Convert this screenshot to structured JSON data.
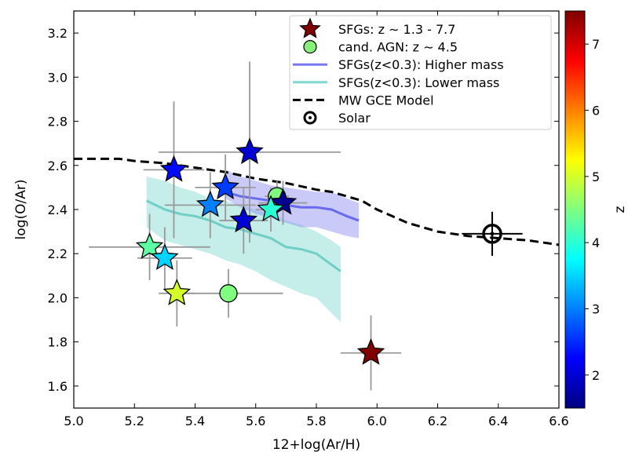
{
  "chart_data": {
    "type": "scatter",
    "xlabel": "12+log(Ar/H)",
    "ylabel": "log(O/Ar)",
    "xlim": [
      5.0,
      6.6
    ],
    "ylim": [
      1.5,
      3.3
    ],
    "xticks": [
      "5.0",
      "5.2",
      "5.4",
      "5.6",
      "5.8",
      "6.0",
      "6.2",
      "6.4",
      "6.6"
    ],
    "yticks": [
      "1.6",
      "1.8",
      "2.0",
      "2.2",
      "2.4",
      "2.6",
      "2.8",
      "3.0",
      "3.2"
    ],
    "legend": {
      "placement": "top-right",
      "entries": [
        {
          "label": "SFGs: z ∼ 1.3 - 7.7",
          "marker": "star",
          "color": "#800000"
        },
        {
          "label": "cand. AGN: z ∼ 4.5",
          "marker": "circle",
          "color": "#88f07a"
        },
        {
          "label": "SFGs(z<0.3): Higher mass",
          "marker": "line",
          "color": "#7878f0"
        },
        {
          "label": "SFGs(z<0.3): Lower mass",
          "marker": "line",
          "color": "#7fd8d0"
        },
        {
          "label": "MW GCE Model",
          "marker": "dashed",
          "color": "#000000"
        },
        {
          "label": "Solar",
          "marker": "solar",
          "color": "#000000"
        }
      ]
    },
    "colorbar": {
      "label": "z",
      "range": [
        1.5,
        7.5
      ],
      "ticks": [
        "2",
        "3",
        "4",
        "5",
        "6",
        "7"
      ]
    },
    "sfgs": [
      {
        "x": 5.33,
        "y": 2.58,
        "xerr": 0.1,
        "yerr": 0.31,
        "z": 2.3
      },
      {
        "x": 5.58,
        "y": 2.66,
        "xerr": 0.3,
        "yerr": 0.41,
        "z": 2.0
      },
      {
        "x": 5.5,
        "y": 2.5,
        "xerr": 0.1,
        "yerr": 0.15,
        "z": 2.6
      },
      {
        "x": 5.45,
        "y": 2.42,
        "xerr": 0.15,
        "yerr": 0.15,
        "z": 3.0
      },
      {
        "x": 5.56,
        "y": 2.35,
        "xerr": 0.08,
        "yerr": 0.15,
        "z": 2.0
      },
      {
        "x": 5.69,
        "y": 2.43,
        "xerr": 0.08,
        "yerr": 0.1,
        "z": 1.6
      },
      {
        "x": 5.65,
        "y": 2.4,
        "xerr": 0.05,
        "yerr": 0.1,
        "z": 4.0
      },
      {
        "x": 5.25,
        "y": 2.23,
        "xerr": 0.2,
        "yerr": 0.15,
        "z": 4.3
      },
      {
        "x": 5.3,
        "y": 2.18,
        "xerr": 0.09,
        "yerr": 0.14,
        "z": 3.5
      },
      {
        "x": 5.34,
        "y": 2.02,
        "xerr": 0.06,
        "yerr": 0.15,
        "z": 5.0
      },
      {
        "x": 5.98,
        "y": 1.75,
        "xerr": 0.1,
        "yerr": 0.17,
        "z": 7.5
      }
    ],
    "agn": [
      {
        "x": 5.67,
        "y": 2.46,
        "xerr": 0.04,
        "yerr": 0.07,
        "z": 4.5
      },
      {
        "x": 5.51,
        "y": 2.02,
        "xerr": 0.18,
        "yerr": 0.11,
        "z": 4.5
      }
    ],
    "higher_mass": {
      "x": [
        5.5,
        5.55,
        5.6,
        5.65,
        5.7,
        5.75,
        5.8,
        5.85,
        5.9,
        5.94
      ],
      "y": [
        2.48,
        2.46,
        2.45,
        2.44,
        2.42,
        2.41,
        2.41,
        2.4,
        2.37,
        2.35
      ],
      "lo": [
        2.45,
        2.41,
        2.38,
        2.36,
        2.34,
        2.32,
        2.32,
        2.3,
        2.28,
        2.27
      ],
      "hi": [
        2.58,
        2.55,
        2.53,
        2.51,
        2.5,
        2.49,
        2.48,
        2.48,
        2.45,
        2.43
      ]
    },
    "lower_mass": {
      "x": [
        5.24,
        5.3,
        5.35,
        5.4,
        5.45,
        5.5,
        5.55,
        5.6,
        5.65,
        5.7,
        5.75,
        5.8,
        5.85,
        5.88
      ],
      "y": [
        2.44,
        2.4,
        2.38,
        2.37,
        2.35,
        2.32,
        2.31,
        2.29,
        2.27,
        2.23,
        2.22,
        2.2,
        2.15,
        2.12
      ],
      "lo": [
        2.32,
        2.26,
        2.24,
        2.22,
        2.2,
        2.17,
        2.15,
        2.12,
        2.08,
        2.05,
        2.02,
        2.0,
        1.93,
        1.89
      ],
      "hi": [
        2.55,
        2.53,
        2.5,
        2.48,
        2.45,
        2.44,
        2.42,
        2.4,
        2.38,
        2.35,
        2.33,
        2.3,
        2.26,
        2.23
      ]
    },
    "gce_model": {
      "x": [
        5.0,
        5.05,
        5.1,
        5.15,
        5.2,
        5.3,
        5.4,
        5.5,
        5.6,
        5.7,
        5.8,
        5.85,
        5.9,
        5.95,
        6.0,
        6.05,
        6.1,
        6.15,
        6.2,
        6.3,
        6.4,
        6.5,
        6.6
      ],
      "y": [
        2.63,
        2.63,
        2.63,
        2.63,
        2.62,
        2.61,
        2.59,
        2.57,
        2.54,
        2.52,
        2.49,
        2.48,
        2.46,
        2.44,
        2.4,
        2.37,
        2.34,
        2.32,
        2.3,
        2.28,
        2.27,
        2.26,
        2.24
      ]
    },
    "solar": {
      "x": 6.38,
      "y": 2.29,
      "xerr": 0.1,
      "yerr": 0.1
    }
  }
}
